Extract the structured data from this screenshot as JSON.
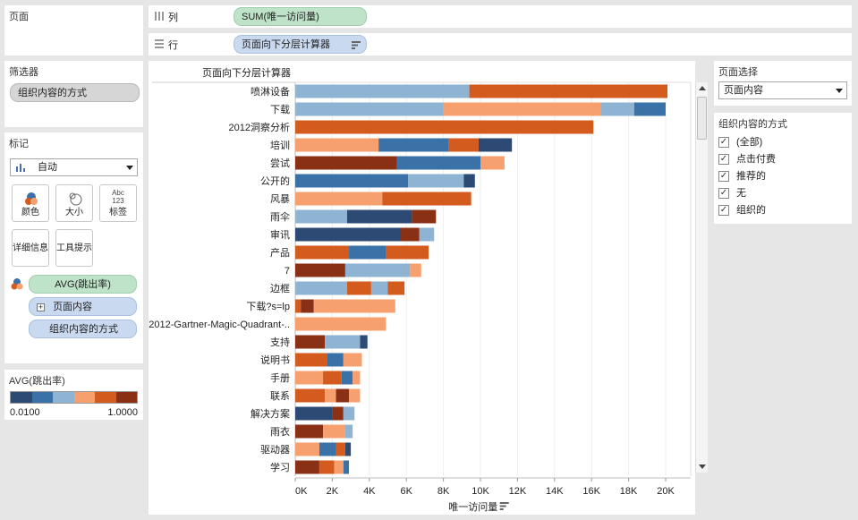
{
  "pages_panel": {
    "title": "页面"
  },
  "columns_shelf": {
    "label": "列",
    "pill": "SUM(唯一访问量)"
  },
  "rows_shelf": {
    "label": "行",
    "pill": "页面向下分层计算器"
  },
  "filters": {
    "title": "筛选器",
    "pill": "组织内容的方式"
  },
  "marks": {
    "title": "标记",
    "type_value": "自动",
    "buttons": {
      "color": "颜色",
      "size": "大小",
      "label": "标签",
      "label_icon_top": "Abc",
      "label_icon_bottom": "123",
      "detail": "详细信息",
      "tooltip": "工具提示"
    },
    "fields": {
      "color_field": "AVG(跳出率)",
      "detail_field": "页面内容",
      "detail_expand": "+",
      "detail_field2": "组织内容的方式"
    }
  },
  "legend": {
    "title": "AVG(跳出率)",
    "min": "0.0100",
    "max": "1.0000",
    "colors": [
      "#2c4a74",
      "#3a72a8",
      "#8fb3d3",
      "#f6a06f",
      "#d35b1e",
      "#8a3014"
    ]
  },
  "page_selector": {
    "title": "页面选择",
    "value": "页面内容"
  },
  "org_filter": {
    "title": "组织内容的方式",
    "options": [
      {
        "label": "(全部)",
        "checked": true
      },
      {
        "label": "点击付费",
        "checked": true
      },
      {
        "label": "推荐的",
        "checked": true
      },
      {
        "label": "无",
        "checked": true
      },
      {
        "label": "组织的",
        "checked": true
      }
    ]
  },
  "colors": {
    "c1": "#2c4a74",
    "c2": "#3a72a8",
    "c3": "#8fb3d3",
    "c4": "#f6a06f",
    "c5": "#d35b1e",
    "c6": "#8a3014"
  },
  "chart_data": {
    "type": "bar",
    "orientation": "horizontal",
    "stacked": true,
    "row_header": "页面向下分层计算器",
    "xlabel": "唯一访问量",
    "xlim": [
      0,
      21000
    ],
    "xticks": [
      "0K",
      "2K",
      "4K",
      "6K",
      "8K",
      "10K",
      "12K",
      "14K",
      "16K",
      "18K",
      "20K"
    ],
    "xtick_values": [
      0,
      2000,
      4000,
      6000,
      8000,
      10000,
      12000,
      14000,
      16000,
      18000,
      20000
    ],
    "grid": true,
    "categories": [
      "喷淋设备",
      "下载",
      "2012洞察分析",
      "培训",
      "尝试",
      "公开的",
      "风暴",
      "雨伞",
      "审讯",
      "产品",
      "7",
      "边框",
      "下载?s=lp",
      "2012-Gartner-Magic-Quadrant-..",
      "支持",
      "说明书",
      "手册",
      "联系",
      "解决方案",
      "雨衣",
      "驱动器",
      "学习"
    ],
    "segments": [
      [
        {
          "v": 9400,
          "c": "c3"
        },
        {
          "v": 10700,
          "c": "c5"
        }
      ],
      [
        {
          "v": 8000,
          "c": "c3"
        },
        {
          "v": 8500,
          "c": "c4"
        },
        {
          "v": 1800,
          "c": "c3"
        },
        {
          "v": 1700,
          "c": "c2"
        }
      ],
      [
        {
          "v": 16100,
          "c": "c5"
        }
      ],
      [
        {
          "v": 4500,
          "c": "c4"
        },
        {
          "v": 3800,
          "c": "c2"
        },
        {
          "v": 1600,
          "c": "c5"
        },
        {
          "v": 1800,
          "c": "c1"
        }
      ],
      [
        {
          "v": 5500,
          "c": "c6"
        },
        {
          "v": 4500,
          "c": "c2"
        },
        {
          "v": 1300,
          "c": "c4"
        }
      ],
      [
        {
          "v": 6100,
          "c": "c2"
        },
        {
          "v": 3000,
          "c": "c3"
        },
        {
          "v": 600,
          "c": "c1"
        }
      ],
      [
        {
          "v": 4700,
          "c": "c4"
        },
        {
          "v": 4800,
          "c": "c5"
        }
      ],
      [
        {
          "v": 2800,
          "c": "c3"
        },
        {
          "v": 3500,
          "c": "c1"
        },
        {
          "v": 1300,
          "c": "c6"
        }
      ],
      [
        {
          "v": 5700,
          "c": "c1"
        },
        {
          "v": 1000,
          "c": "c6"
        },
        {
          "v": 800,
          "c": "c3"
        }
      ],
      [
        {
          "v": 2900,
          "c": "c5"
        },
        {
          "v": 2000,
          "c": "c2"
        },
        {
          "v": 2300,
          "c": "c5"
        }
      ],
      [
        {
          "v": 2700,
          "c": "c6"
        },
        {
          "v": 3500,
          "c": "c3"
        },
        {
          "v": 600,
          "c": "c4"
        }
      ],
      [
        {
          "v": 2800,
          "c": "c3"
        },
        {
          "v": 1300,
          "c": "c5"
        },
        {
          "v": 900,
          "c": "c3"
        },
        {
          "v": 900,
          "c": "c5"
        }
      ],
      [
        {
          "v": 300,
          "c": "c5"
        },
        {
          "v": 700,
          "c": "c6"
        },
        {
          "v": 4400,
          "c": "c4"
        }
      ],
      [
        {
          "v": 4900,
          "c": "c4"
        }
      ],
      [
        {
          "v": 1600,
          "c": "c6"
        },
        {
          "v": 1900,
          "c": "c3"
        },
        {
          "v": 400,
          "c": "c1"
        }
      ],
      [
        {
          "v": 1700,
          "c": "c5"
        },
        {
          "v": 900,
          "c": "c2"
        },
        {
          "v": 1000,
          "c": "c4"
        }
      ],
      [
        {
          "v": 1500,
          "c": "c4"
        },
        {
          "v": 1000,
          "c": "c5"
        },
        {
          "v": 600,
          "c": "c2"
        },
        {
          "v": 400,
          "c": "c4"
        }
      ],
      [
        {
          "v": 1600,
          "c": "c5"
        },
        {
          "v": 600,
          "c": "c4"
        },
        {
          "v": 700,
          "c": "c6"
        },
        {
          "v": 600,
          "c": "c4"
        }
      ],
      [
        {
          "v": 2000,
          "c": "c1"
        },
        {
          "v": 600,
          "c": "c6"
        },
        {
          "v": 600,
          "c": "c3"
        }
      ],
      [
        {
          "v": 1500,
          "c": "c6"
        },
        {
          "v": 1200,
          "c": "c4"
        },
        {
          "v": 400,
          "c": "c3"
        }
      ],
      [
        {
          "v": 1300,
          "c": "c4"
        },
        {
          "v": 900,
          "c": "c2"
        },
        {
          "v": 500,
          "c": "c5"
        },
        {
          "v": 300,
          "c": "c1"
        }
      ],
      [
        {
          "v": 1300,
          "c": "c6"
        },
        {
          "v": 800,
          "c": "c5"
        },
        {
          "v": 500,
          "c": "c4"
        },
        {
          "v": 300,
          "c": "c2"
        }
      ]
    ]
  }
}
